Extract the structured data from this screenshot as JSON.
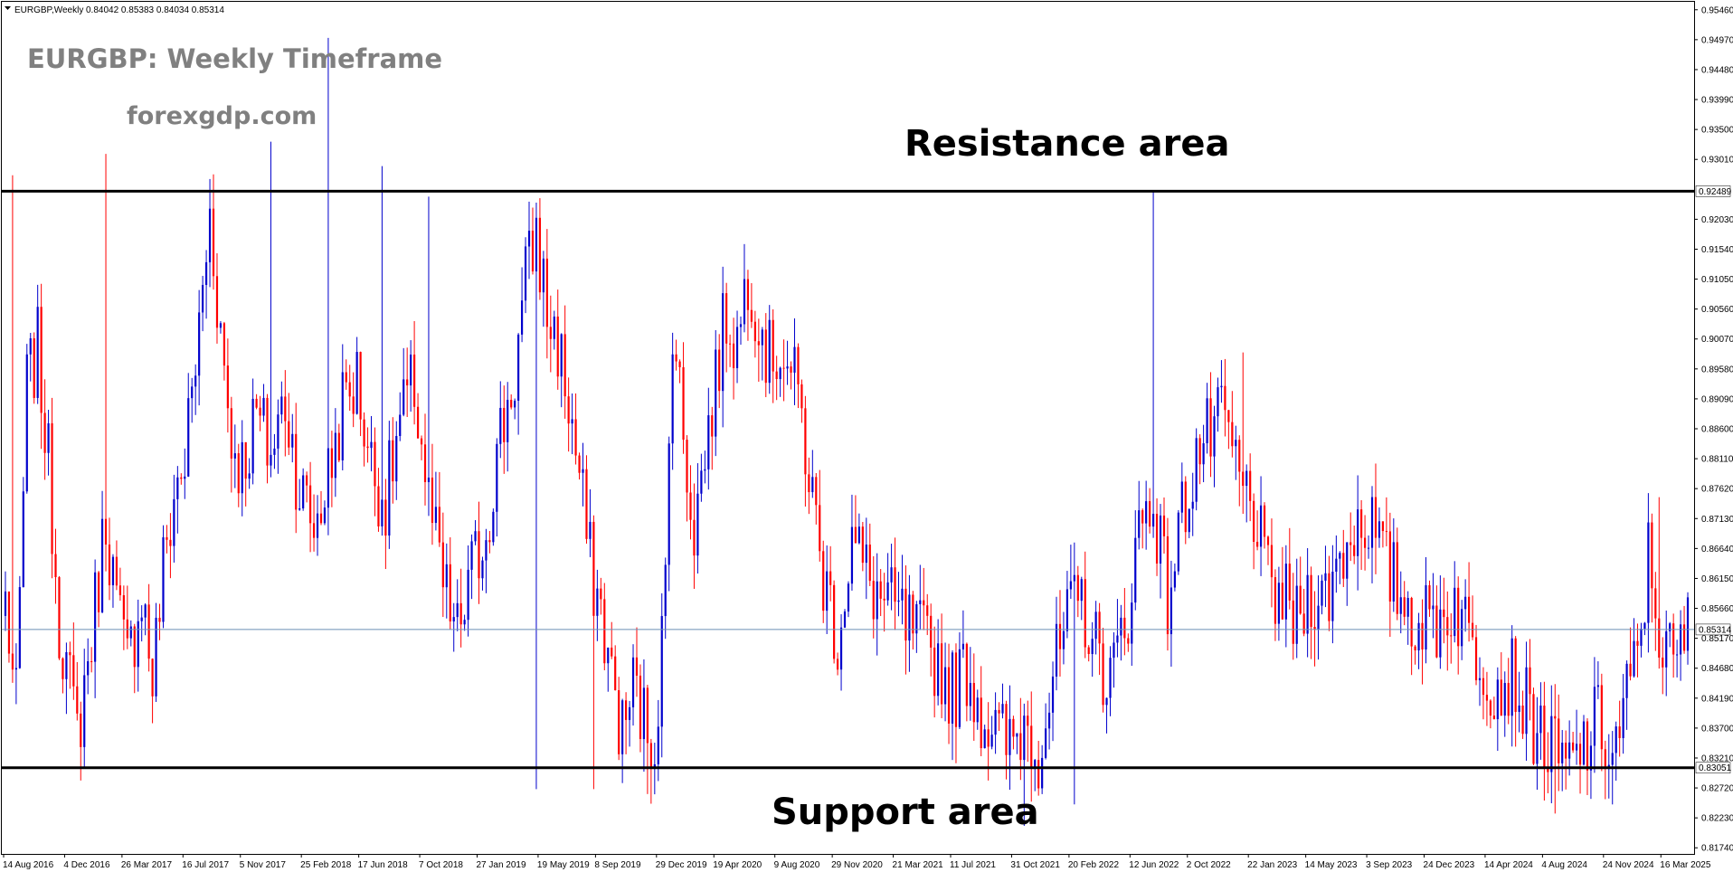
{
  "header": {
    "symbol_label": "EURGBP,Weekly",
    "ohlc": "0.84042 0.85383 0.84034 0.85314",
    "dropdown_icon": "triangle-down-icon"
  },
  "watermark": {
    "title": "EURGBP: Weekly Timeframe",
    "site": "forexgdp.com"
  },
  "annotations": {
    "resistance": "Resistance area",
    "support": "Support area"
  },
  "colors": {
    "bull": "#0000cc",
    "bear": "#ff0000",
    "level_line": "#000000",
    "current_price_line": "#6b8fb5",
    "background": "#ffffff"
  },
  "chart_data": {
    "type": "candlestick",
    "symbol": "EURGBP",
    "timeframe": "Weekly",
    "ylim": [
      0.8164,
      0.9559
    ],
    "y_ticks": [
      "0.95460",
      "0.94970",
      "0.94480",
      "0.93990",
      "0.93500",
      "0.93010",
      "0.92030",
      "0.91540",
      "0.91050",
      "0.90560",
      "0.90070",
      "0.89580",
      "0.89090",
      "0.88600",
      "0.88110",
      "0.87620",
      "0.87130",
      "0.86640",
      "0.86150",
      "0.85660",
      "0.85170",
      "0.84680",
      "0.84190",
      "0.83700",
      "0.83210",
      "0.82720",
      "0.82230",
      "0.81740"
    ],
    "x_ticks": [
      "14 Aug 2016",
      "4 Dec 2016",
      "26 Mar 2017",
      "16 Jul 2017",
      "5 Nov 2017",
      "25 Feb 2018",
      "17 Jun 2018",
      "7 Oct 2018",
      "27 Jan 2019",
      "19 May 2019",
      "8 Sep 2019",
      "29 Dec 2019",
      "19 Apr 2020",
      "9 Aug 2020",
      "29 Nov 2020",
      "21 Mar 2021",
      "11 Jul 2021",
      "31 Oct 2021",
      "20 Feb 2022",
      "12 Jun 2022",
      "2 Oct 2022",
      "22 Jan 2023",
      "14 May 2023",
      "3 Sep 2023",
      "24 Dec 2023",
      "14 Apr 2024",
      "4 Aug 2024",
      "24 Nov 2024",
      "16 Mar 2025"
    ],
    "resistance_level": {
      "price": 0.92489,
      "label": "0.92489"
    },
    "support_level": {
      "price": 0.83051,
      "label": "0.83051"
    },
    "current_price": {
      "price": 0.85314,
      "label": "0.85314"
    },
    "anchors": [
      [
        0,
        0.858
      ],
      [
        3,
        0.84
      ],
      [
        6,
        0.893
      ],
      [
        9,
        0.899
      ],
      [
        12,
        0.88
      ],
      [
        15,
        0.855
      ],
      [
        18,
        0.843
      ],
      [
        20,
        0.836
      ],
      [
        24,
        0.852
      ],
      [
        28,
        0.872
      ],
      [
        31,
        0.857
      ],
      [
        34,
        0.847
      ],
      [
        38,
        0.86
      ],
      [
        41,
        0.845
      ],
      [
        44,
        0.863
      ],
      [
        47,
        0.875
      ],
      [
        50,
        0.881
      ],
      [
        54,
        0.902
      ],
      [
        57,
        0.921
      ],
      [
        60,
        0.902
      ],
      [
        63,
        0.884
      ],
      [
        66,
        0.88
      ],
      [
        70,
        0.888
      ],
      [
        74,
        0.882
      ],
      [
        78,
        0.891
      ],
      [
        82,
        0.876
      ],
      [
        86,
        0.87
      ],
      [
        90,
        0.878
      ],
      [
        94,
        0.89
      ],
      [
        98,
        0.894
      ],
      [
        102,
        0.88
      ],
      [
        106,
        0.874
      ],
      [
        110,
        0.887
      ],
      [
        114,
        0.893
      ],
      [
        118,
        0.874
      ],
      [
        122,
        0.86
      ],
      [
        126,
        0.852
      ],
      [
        130,
        0.862
      ],
      [
        134,
        0.87
      ],
      [
        138,
        0.885
      ],
      [
        142,
        0.895
      ],
      [
        145,
        0.91
      ],
      [
        148,
        0.918
      ],
      [
        151,
        0.905
      ],
      [
        154,
        0.9
      ],
      [
        157,
        0.89
      ],
      [
        160,
        0.878
      ],
      [
        163,
        0.864
      ],
      [
        166,
        0.856
      ],
      [
        169,
        0.845
      ],
      [
        172,
        0.836
      ],
      [
        175,
        0.844
      ],
      [
        178,
        0.838
      ],
      [
        181,
        0.835
      ],
      [
        184,
        0.86
      ],
      [
        186,
        0.905
      ],
      [
        189,
        0.885
      ],
      [
        192,
        0.87
      ],
      [
        195,
        0.882
      ],
      [
        198,
        0.894
      ],
      [
        201,
        0.905
      ],
      [
        204,
        0.9
      ],
      [
        207,
        0.912
      ],
      [
        210,
        0.905
      ],
      [
        213,
        0.897
      ],
      [
        216,
        0.9
      ],
      [
        219,
        0.895
      ],
      [
        222,
        0.888
      ],
      [
        225,
        0.874
      ],
      [
        228,
        0.862
      ],
      [
        232,
        0.852
      ],
      [
        236,
        0.868
      ],
      [
        240,
        0.862
      ],
      [
        244,
        0.858
      ],
      [
        248,
        0.856
      ],
      [
        252,
        0.853
      ],
      [
        256,
        0.851
      ],
      [
        260,
        0.848
      ],
      [
        264,
        0.843
      ],
      [
        268,
        0.847
      ],
      [
        272,
        0.84
      ],
      [
        276,
        0.836
      ],
      [
        280,
        0.834
      ],
      [
        284,
        0.838
      ],
      [
        288,
        0.834
      ],
      [
        292,
        0.845
      ],
      [
        296,
        0.854
      ],
      [
        300,
        0.858
      ],
      [
        304,
        0.85
      ],
      [
        308,
        0.845
      ],
      [
        312,
        0.853
      ],
      [
        316,
        0.87
      ],
      [
        320,
        0.875
      ],
      [
        324,
        0.858
      ],
      [
        328,
        0.872
      ],
      [
        332,
        0.882
      ],
      [
        336,
        0.885
      ],
      [
        340,
        0.887
      ],
      [
        344,
        0.877
      ],
      [
        348,
        0.873
      ],
      [
        352,
        0.86
      ],
      [
        356,
        0.858
      ],
      [
        360,
        0.854
      ],
      [
        364,
        0.86
      ],
      [
        368,
        0.858
      ],
      [
        372,
        0.865
      ],
      [
        376,
        0.87
      ],
      [
        380,
        0.872
      ],
      [
        384,
        0.864
      ],
      [
        388,
        0.86
      ],
      [
        392,
        0.856
      ],
      [
        396,
        0.854
      ],
      [
        400,
        0.855
      ],
      [
        404,
        0.858
      ],
      [
        408,
        0.852
      ],
      [
        412,
        0.848
      ],
      [
        416,
        0.844
      ],
      [
        420,
        0.846
      ],
      [
        424,
        0.84
      ],
      [
        428,
        0.836
      ],
      [
        432,
        0.832
      ],
      [
        436,
        0.83
      ],
      [
        440,
        0.834
      ],
      [
        444,
        0.838
      ],
      [
        448,
        0.832
      ],
      [
        452,
        0.842
      ],
      [
        455,
        0.848
      ],
      [
        458,
        0.865
      ],
      [
        462,
        0.85
      ],
      [
        466,
        0.847
      ],
      [
        468,
        0.853
      ]
    ],
    "spikes": [
      [
        2,
        0.9275,
        null
      ],
      [
        28,
        0.931,
        null
      ],
      [
        74,
        0.933,
        null
      ],
      [
        90,
        0.95,
        0.878
      ],
      [
        105,
        0.929,
        null
      ],
      [
        118,
        0.924,
        null
      ],
      [
        148,
        0.827,
        null
      ],
      [
        164,
        0.827,
        null
      ],
      [
        179,
        0.8262,
        null
      ],
      [
        186,
        null,
        null
      ],
      [
        284,
        0.821,
        null
      ],
      [
        298,
        0.8245,
        null
      ],
      [
        320,
        0.9249,
        null
      ],
      [
        345,
        0.8985,
        null
      ],
      [
        432,
        0.823,
        null
      ],
      [
        448,
        0.8245,
        null
      ],
      [
        461,
        0.8748,
        null
      ]
    ]
  }
}
